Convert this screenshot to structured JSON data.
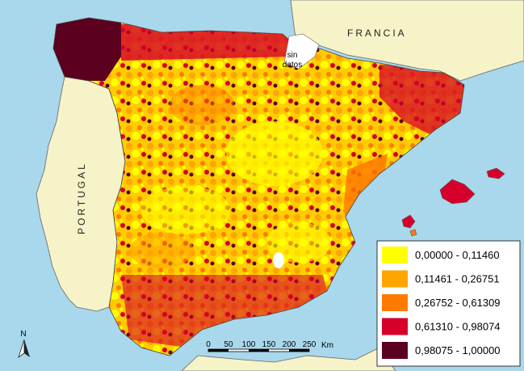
{
  "labels": {
    "francia": "FRANCIA",
    "portugal": "PORTUGAL",
    "sin_datos_line1": "sin",
    "sin_datos_line2": "datos",
    "north": "N"
  },
  "scale": {
    "ticks": [
      "0",
      "50",
      "100",
      "150",
      "200",
      "250"
    ],
    "unit": "Km"
  },
  "legend": [
    {
      "label": "0,00000 - 0,11460",
      "color": "#ffff00"
    },
    {
      "label": "0,11461 - 0,26751",
      "color": "#ffa500"
    },
    {
      "label": "0,26752 - 0,61309",
      "color": "#ff7a00"
    },
    {
      "label": "0,61310 - 0,98074",
      "color": "#d6002a"
    },
    {
      "label": "0,98075 - 1,00000",
      "color": "#5b001e"
    }
  ],
  "colors": {
    "sea": "#a9d7ec",
    "land_neighbor": "#f6f3c8",
    "border": "#666666"
  }
}
